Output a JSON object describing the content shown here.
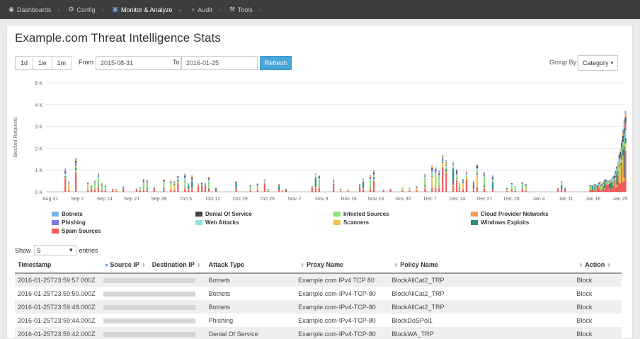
{
  "nav": {
    "items": [
      {
        "label": "Dashboards",
        "icon": "dashboard-icon",
        "glyph": "◉"
      },
      {
        "label": "Config",
        "icon": "gears-icon",
        "glyph": "⚙"
      },
      {
        "label": "Monitor & Analyze",
        "icon": "chart-icon",
        "glyph": "▣"
      },
      {
        "label": "Audit",
        "icon": "search-icon",
        "glyph": "⌕"
      },
      {
        "label": "Tools",
        "icon": "wrench-icon",
        "glyph": "⚒"
      }
    ],
    "separator": "›",
    "dropdown_caret": "⌄"
  },
  "page": {
    "title": "Example.com Threat Intelligence Stats"
  },
  "filters": {
    "ranges": [
      "1d",
      "1w",
      "1m"
    ],
    "from_label": "From",
    "from_value": "2015-08-31",
    "to_label": "To",
    "to_value": "2016-01-25",
    "refresh_label": "Refresh",
    "group_by_label": "Group By:",
    "group_by_value": "Category",
    "group_by_caret": "▾"
  },
  "chart_data": {
    "type": "bar",
    "ylabel": "Blocked Requests",
    "ylim": [
      0,
      5000
    ],
    "y_ticks": [
      "0 K",
      "1 K",
      "2 K",
      "3 K",
      "4 K",
      "5 K"
    ],
    "x_ticks": [
      "Aug 31",
      "Sep 7",
      "Sep 14",
      "Sep 21",
      "Sep 28",
      "Oct 5",
      "Oct 12",
      "Oct 19",
      "Oct 26",
      "Nov 2",
      "Nov 9",
      "Nov 16",
      "Nov 23",
      "Nov 30",
      "Dec 7",
      "Dec 14",
      "Dec 21",
      "Dec 28",
      "Jan 4",
      "Jan 11",
      "Jan 18",
      "Jan 25"
    ],
    "stacked": true,
    "grid": true,
    "series": [
      {
        "name": "Spam Sources",
        "color": "#f25a5a"
      },
      {
        "name": "Scanners",
        "color": "#e8c54a"
      },
      {
        "name": "Windows Exploits",
        "color": "#2e8b83"
      },
      {
        "name": "Infected Sources",
        "color": "#8ee07a"
      },
      {
        "name": "Web Attacks",
        "color": "#8de3e8"
      },
      {
        "name": "Phishing",
        "color": "#7c7ce8"
      },
      {
        "name": "Denial Of Service",
        "color": "#444444"
      },
      {
        "name": "Cloud Provider Networks",
        "color": "#f5a050"
      },
      {
        "name": "Botnets",
        "color": "#7cb5ec"
      }
    ],
    "clusters": [
      {
        "start": 0.03,
        "end": 0.06,
        "peak": 1600
      },
      {
        "start": 0.07,
        "end": 0.12,
        "peak": 900
      },
      {
        "start": 0.13,
        "end": 0.16,
        "peak": 500
      },
      {
        "start": 0.18,
        "end": 0.22,
        "peak": 700
      },
      {
        "start": 0.23,
        "end": 0.3,
        "peak": 1200
      },
      {
        "start": 0.31,
        "end": 0.35,
        "peak": 700
      },
      {
        "start": 0.36,
        "end": 0.4,
        "peak": 800
      },
      {
        "start": 0.42,
        "end": 0.46,
        "peak": 700
      },
      {
        "start": 0.48,
        "end": 0.5,
        "peak": 400
      },
      {
        "start": 0.52,
        "end": 0.57,
        "peak": 1100
      },
      {
        "start": 0.58,
        "end": 0.6,
        "peak": 600
      },
      {
        "start": 0.61,
        "end": 0.64,
        "peak": 300
      },
      {
        "start": 0.65,
        "end": 0.68,
        "peak": 1000
      },
      {
        "start": 0.7,
        "end": 0.72,
        "peak": 500
      },
      {
        "start": 0.74,
        "end": 0.77,
        "peak": 400
      },
      {
        "start": 0.78,
        "end": 0.86,
        "peak": 1800
      },
      {
        "start": 0.86,
        "end": 0.92,
        "peak": 1500
      },
      {
        "start": 0.93,
        "end": 0.96,
        "peak": 800
      },
      {
        "start": 0.97,
        "end": 1.0,
        "peak": 600
      },
      {
        "start": 1.06,
        "end": 1.09,
        "peak": 600
      }
    ],
    "surge": {
      "start": 1.135,
      "end": 1.21,
      "peak": 4100
    },
    "span_weeks": 21
  },
  "legend_items": [
    {
      "label": "Botnets",
      "color": "#7cb5ec"
    },
    {
      "label": "Phishing",
      "color": "#7c7ce8"
    },
    {
      "label": "Spam Sources",
      "color": "#f25a5a"
    },
    {
      "label": "Denial Of Service",
      "color": "#444444"
    },
    {
      "label": "Web Attacks",
      "color": "#8de3e8"
    },
    {
      "label": "Infected Sources",
      "color": "#8ee07a"
    },
    {
      "label": "Scanners",
      "color": "#e8c54a"
    },
    {
      "label": "Cloud Provider Networks",
      "color": "#f5a050"
    },
    {
      "label": "Windows Exploits",
      "color": "#2e8b83"
    }
  ],
  "table": {
    "show_label": "Show",
    "show_value": "5",
    "show_caret": "▾",
    "entries_label": "entries",
    "sort_icon": "⬍",
    "sort_active_icon": "▾",
    "columns": [
      "Timestamp",
      "Source IP",
      "Destination IP",
      "Attack Type",
      "Proxy Name",
      "Policy Name",
      "Action"
    ],
    "rows": [
      {
        "timestamp": "2016-01-25T23:59:57.000Z",
        "attack_type": "Botnets",
        "proxy_name": "Example.com IPv4 TCP 80",
        "policy_name": "BlockAllCat2_TRP",
        "action": "Block"
      },
      {
        "timestamp": "2016-01-25T23:59:50.000Z",
        "attack_type": "Botnets",
        "proxy_name": "Example.com-IPv4-TCP-80",
        "policy_name": "BlockAllCat2_TRP",
        "action": "Block"
      },
      {
        "timestamp": "2016-01-25T23:59:48.000Z",
        "attack_type": "Botnets",
        "proxy_name": "Example.com-IPv4-TCP-80",
        "policy_name": "BlockAllCat2_TRP",
        "action": "Block"
      },
      {
        "timestamp": "2016-01-25T23:59:44.000Z",
        "attack_type": "Phishing",
        "proxy_name": "Example.com-IPv4-TCP-80",
        "policy_name": "BlockDoSPol1",
        "action": "Block"
      },
      {
        "timestamp": "2016-01-25T23:59:42.000Z",
        "attack_type": "Denial Of Service",
        "proxy_name": "Example.com-IPv4-TCP-80",
        "policy_name": "BlockWA_TRP",
        "action": "Block"
      }
    ]
  }
}
